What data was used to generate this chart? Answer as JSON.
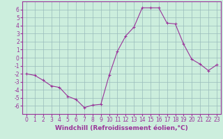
{
  "x": [
    0,
    1,
    2,
    3,
    4,
    5,
    6,
    7,
    8,
    9,
    10,
    11,
    12,
    13,
    14,
    15,
    16,
    17,
    18,
    19,
    20,
    21,
    22,
    23
  ],
  "y": [
    -2,
    -2.2,
    -2.8,
    -3.5,
    -3.7,
    -4.8,
    -5.2,
    -6.2,
    -5.9,
    -5.8,
    -2.2,
    0.8,
    2.7,
    3.8,
    6.2,
    6.2,
    6.2,
    4.3,
    4.2,
    1.7,
    -0.2,
    -0.8,
    -1.6,
    -0.9
  ],
  "line_color": "#993399",
  "marker": "+",
  "xlabel": "Windchill (Refroidissement éolien,°C)",
  "xlabel_fontsize": 6.5,
  "ylabel_ticks": [
    -6,
    -5,
    -4,
    -3,
    -2,
    -1,
    0,
    1,
    2,
    3,
    4,
    5,
    6
  ],
  "xlim": [
    -0.5,
    23.5
  ],
  "ylim": [
    -7.0,
    7.0
  ],
  "bg_color": "#cceedd",
  "grid_color": "#99bbbb",
  "tick_fontsize": 5.5
}
